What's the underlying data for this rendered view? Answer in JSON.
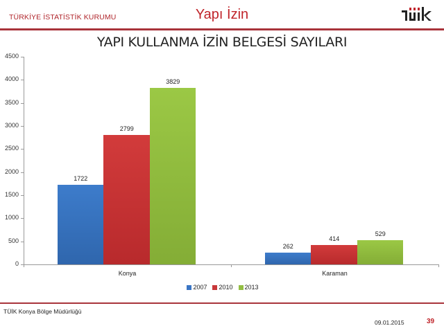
{
  "header": {
    "organization": "TÜRKİYE İSTATİSTİK KURUMU",
    "section_title": "Yapı İzin",
    "logo_text": "TÜİK"
  },
  "chart_data": {
    "type": "bar",
    "title": "YAPI KULLANMA İZİN BELGESİ SAYILARI",
    "xlabel": "",
    "ylabel": "",
    "categories": [
      "Konya",
      "Karaman"
    ],
    "series": [
      {
        "name": "2007",
        "color": "#3a75c4",
        "values": [
          1722,
          262
        ]
      },
      {
        "name": "2010",
        "color": "#c8383a",
        "values": [
          2799,
          414
        ]
      },
      {
        "name": "2013",
        "color": "#93be43",
        "values": [
          3829,
          529
        ]
      }
    ],
    "ylim": [
      0,
      4500
    ],
    "y_ticks": [
      0,
      500,
      1000,
      1500,
      2000,
      2500,
      3000,
      3500,
      4000,
      4500
    ],
    "grid": false,
    "legend_position": "bottom",
    "data_labels": true
  },
  "footer": {
    "organization": "TÜİK Konya Bölge Müdürlüğü",
    "date": "09.01.2015",
    "page_number": "39"
  }
}
